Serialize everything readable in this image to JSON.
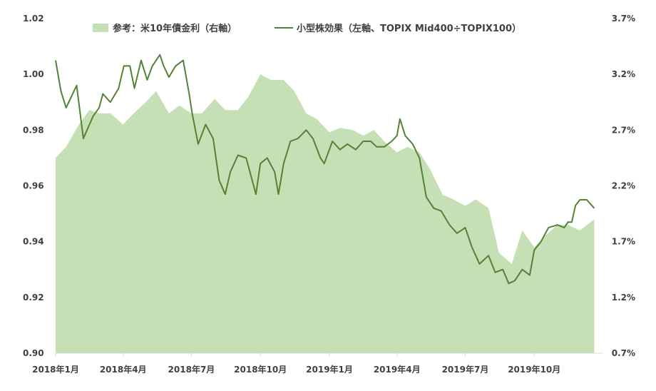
{
  "chart_data": {
    "type": "line",
    "colors": {
      "area": "#c5e0b4",
      "line": "#548235",
      "axis": "#d9d9d9",
      "text": "#404040"
    },
    "legend": [
      {
        "label": "参考：米10年債金利（右軸）",
        "kind": "area"
      },
      {
        "label": "小型株効果（左軸、TOPIX Mid400÷TOPIX100）",
        "kind": "line"
      }
    ],
    "legend_position": "top-center",
    "grid": false,
    "x_axis": {
      "range": [
        "2018-01-01",
        "2019-12-31"
      ],
      "tick_labels": [
        "2018年1月",
        "2018年4月",
        "2018年7月",
        "2018年10月",
        "2019年1月",
        "2019年4月",
        "2019年7月",
        "2019年10月"
      ]
    },
    "y_left": {
      "ylim": [
        0.9,
        1.02
      ],
      "tick_labels": [
        "0.90",
        "0.92",
        "0.94",
        "0.96",
        "0.98",
        "1.00",
        "1.02"
      ]
    },
    "y_right": {
      "ylim": [
        0.7,
        3.7
      ],
      "unit": "%",
      "tick_labels": [
        "0.7%",
        "1.2%",
        "1.7%",
        "2.2%",
        "2.7%",
        "3.2%",
        "3.7%"
      ]
    },
    "series": [
      {
        "name": "参考：米10年債金利（右軸）",
        "axis": "right",
        "type": "area",
        "x": [
          "2018-01-01",
          "2018-01-15",
          "2018-02-01",
          "2018-02-15",
          "2018-03-01",
          "2018-03-15",
          "2018-04-01",
          "2018-04-15",
          "2018-05-01",
          "2018-05-15",
          "2018-06-01",
          "2018-06-15",
          "2018-07-01",
          "2018-07-15",
          "2018-08-01",
          "2018-08-15",
          "2018-09-01",
          "2018-09-15",
          "2018-10-01",
          "2018-10-15",
          "2018-11-01",
          "2018-11-15",
          "2018-12-01",
          "2018-12-15",
          "2019-01-01",
          "2019-01-15",
          "2019-02-01",
          "2019-02-15",
          "2019-03-01",
          "2019-03-15",
          "2019-04-01",
          "2019-04-15",
          "2019-05-01",
          "2019-05-15",
          "2019-06-01",
          "2019-06-15",
          "2019-07-01",
          "2019-07-15",
          "2019-08-01",
          "2019-08-15",
          "2019-09-01",
          "2019-09-15",
          "2019-10-01",
          "2019-10-15",
          "2019-11-01",
          "2019-11-15",
          "2019-12-01",
          "2019-12-20"
        ],
        "values": [
          2.45,
          2.55,
          2.75,
          2.88,
          2.85,
          2.85,
          2.75,
          2.85,
          2.95,
          3.05,
          2.85,
          2.92,
          2.85,
          2.85,
          2.98,
          2.88,
          2.88,
          3.0,
          3.2,
          3.15,
          3.15,
          3.05,
          2.85,
          2.8,
          2.68,
          2.72,
          2.7,
          2.65,
          2.7,
          2.6,
          2.5,
          2.55,
          2.5,
          2.35,
          2.12,
          2.08,
          2.02,
          2.08,
          2.0,
          1.6,
          1.5,
          1.8,
          1.65,
          1.75,
          1.85,
          1.85,
          1.8,
          1.9
        ]
      },
      {
        "name": "小型株効果（左軸、TOPIX Mid400÷TOPIX100）",
        "axis": "left",
        "type": "line",
        "x": [
          "2018-01-01",
          "2018-01-08",
          "2018-01-15",
          "2018-01-29",
          "2018-02-07",
          "2018-02-20",
          "2018-02-28",
          "2018-03-05",
          "2018-03-15",
          "2018-03-26",
          "2018-04-02",
          "2018-04-10",
          "2018-04-16",
          "2018-04-25",
          "2018-05-03",
          "2018-05-10",
          "2018-05-20",
          "2018-05-25",
          "2018-06-01",
          "2018-06-10",
          "2018-06-20",
          "2018-06-28",
          "2018-07-02",
          "2018-07-10",
          "2018-07-20",
          "2018-07-30",
          "2018-08-07",
          "2018-08-15",
          "2018-08-22",
          "2018-09-01",
          "2018-09-12",
          "2018-09-25",
          "2018-10-01",
          "2018-10-10",
          "2018-10-20",
          "2018-10-25",
          "2018-11-01",
          "2018-11-10",
          "2018-11-20",
          "2018-12-01",
          "2018-12-10",
          "2018-12-20",
          "2018-12-25",
          "2019-01-05",
          "2019-01-15",
          "2019-01-25",
          "2019-02-05",
          "2019-02-15",
          "2019-02-25",
          "2019-03-05",
          "2019-03-15",
          "2019-03-25",
          "2019-04-01",
          "2019-04-05",
          "2019-04-12",
          "2019-04-22",
          "2019-05-01",
          "2019-05-10",
          "2019-05-20",
          "2019-05-30",
          "2019-06-10",
          "2019-06-20",
          "2019-07-01",
          "2019-07-10",
          "2019-07-20",
          "2019-08-01",
          "2019-08-10",
          "2019-08-20",
          "2019-08-28",
          "2019-09-05",
          "2019-09-15",
          "2019-09-25",
          "2019-10-01",
          "2019-10-10",
          "2019-10-20",
          "2019-11-01",
          "2019-11-10",
          "2019-11-15",
          "2019-11-20",
          "2019-11-25",
          "2019-12-01",
          "2019-12-10",
          "2019-12-20"
        ],
        "values": [
          1.005,
          0.994,
          0.988,
          0.996,
          0.977,
          0.985,
          0.988,
          0.993,
          0.99,
          0.995,
          1.003,
          1.003,
          0.995,
          1.005,
          0.998,
          1.003,
          1.007,
          1.003,
          0.999,
          1.003,
          1.005,
          0.993,
          0.986,
          0.975,
          0.982,
          0.977,
          0.962,
          0.957,
          0.965,
          0.971,
          0.97,
          0.957,
          0.968,
          0.97,
          0.965,
          0.957,
          0.968,
          0.976,
          0.977,
          0.98,
          0.977,
          0.97,
          0.968,
          0.976,
          0.973,
          0.975,
          0.973,
          0.976,
          0.976,
          0.974,
          0.974,
          0.976,
          0.978,
          0.984,
          0.978,
          0.975,
          0.97,
          0.956,
          0.952,
          0.951,
          0.946,
          0.943,
          0.945,
          0.938,
          0.932,
          0.935,
          0.929,
          0.93,
          0.925,
          0.926,
          0.93,
          0.928,
          0.937,
          0.94,
          0.945,
          0.946,
          0.945,
          0.947,
          0.947,
          0.953,
          0.955,
          0.955,
          0.952
        ]
      }
    ]
  }
}
